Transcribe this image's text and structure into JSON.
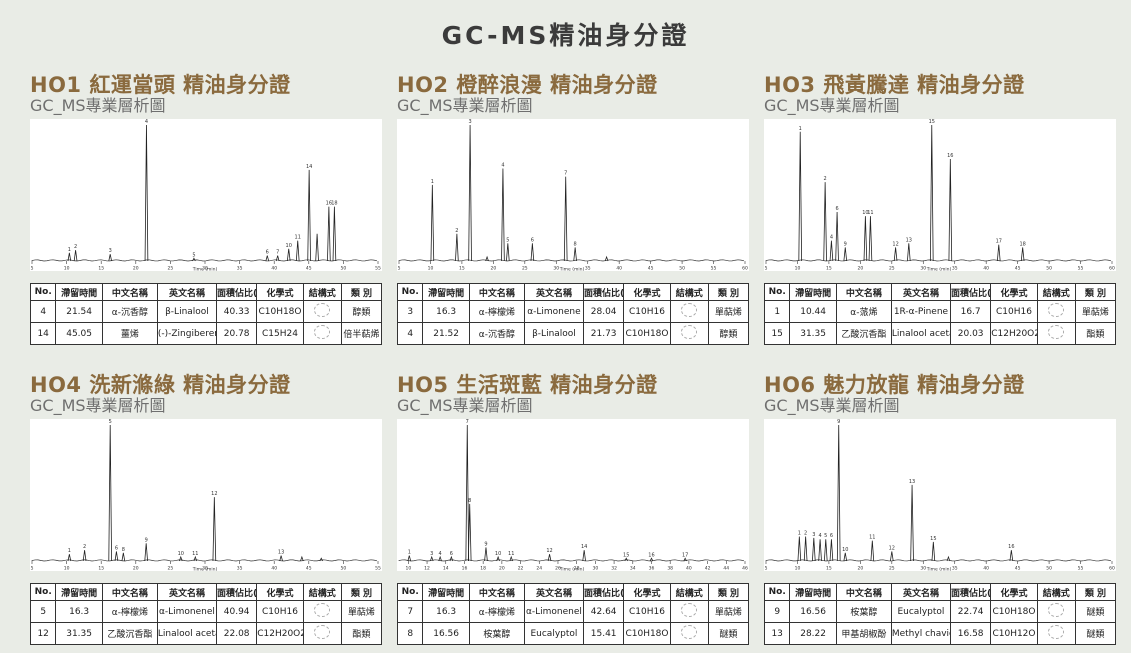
{
  "page_title": "GC-MS精油身分證",
  "subtitle": "GC_MS專業層析圖",
  "table_headers": [
    "No.",
    "滯留時間",
    "中文名稱",
    "英文名稱",
    "面積佔比(%)",
    "化學式",
    "結構式",
    "類 別"
  ],
  "x_axis_label": "Time (min)",
  "panels": [
    {
      "title": "HO1 紅運當頭 精油身分證",
      "rows": [
        {
          "no": "4",
          "rt": "21.54",
          "cn": "α-沉香醇",
          "en": "β-Linalool",
          "area": "40.33",
          "formula": "C10H18O",
          "category": "醇類"
        },
        {
          "no": "14",
          "rt": "45.05",
          "cn": "薑烯",
          "en": "(-)-Zingiberene",
          "area": "20.78",
          "formula": "C15H24",
          "category": "倍半萜烯"
        }
      ]
    },
    {
      "title": "HO2 橙醉浪漫 精油身分證",
      "rows": [
        {
          "no": "3",
          "rt": "16.3",
          "cn": "α-檸檬烯",
          "en": "α-Limonene",
          "area": "28.04",
          "formula": "C10H16",
          "category": "單萜烯"
        },
        {
          "no": "4",
          "rt": "21.52",
          "cn": "α-沉香醇",
          "en": "β-Linalool",
          "area": "21.73",
          "formula": "C10H18O",
          "category": "醇類"
        }
      ]
    },
    {
      "title": "HO3 飛黃騰達 精油身分證",
      "rows": [
        {
          "no": "1",
          "rt": "10.44",
          "cn": "α-蒎烯",
          "en": "1R-α-Pinene",
          "area": "16.7",
          "formula": "C10H16",
          "category": "單萜烯"
        },
        {
          "no": "15",
          "rt": "31.35",
          "cn": "乙酸沉香酯",
          "en": "Linalool acetate",
          "area": "20.03",
          "formula": "C12H20O2",
          "category": "酯類"
        }
      ]
    },
    {
      "title": "HO4 洗新滌綠 精油身分證",
      "rows": [
        {
          "no": "5",
          "rt": "16.3",
          "cn": "α-檸檬烯",
          "en": "α-Limonenel",
          "area": "40.94",
          "formula": "C10H16",
          "category": "單萜烯"
        },
        {
          "no": "12",
          "rt": "31.35",
          "cn": "乙酸沉香酯",
          "en": "Linalool acetate",
          "area": "22.08",
          "formula": "C12H20O2",
          "category": "酯類"
        }
      ]
    },
    {
      "title": "HO5 生活斑藍 精油身分證",
      "rows": [
        {
          "no": "7",
          "rt": "16.3",
          "cn": "α-檸檬烯",
          "en": "α-Limonenel",
          "area": "42.64",
          "formula": "C10H16",
          "category": "單萜烯"
        },
        {
          "no": "8",
          "rt": "16.56",
          "cn": "桉葉醇",
          "en": "Eucalyptol",
          "area": "15.41",
          "formula": "C10H18O",
          "category": "醚類"
        }
      ]
    },
    {
      "title": "HO6 魅力放龍 精油身分證",
      "rows": [
        {
          "no": "9",
          "rt": "16.56",
          "cn": "桉葉醇",
          "en": "Eucalyptol",
          "area": "22.74",
          "formula": "C10H18O",
          "category": "醚類"
        },
        {
          "no": "13",
          "rt": "28.22",
          "cn": "甲基胡椒酚",
          "en": "Methyl chavicol",
          "area": "16.58",
          "formula": "C10H12O",
          "category": "醚類"
        }
      ]
    }
  ],
  "chart_data": [
    {
      "type": "line",
      "xlim": [
        5,
        55
      ],
      "ticks": [
        5,
        10,
        15,
        20,
        25,
        30,
        35,
        40,
        45,
        50,
        55
      ],
      "peaks": [
        {
          "x": 10.4,
          "h": 0.06,
          "label": "1"
        },
        {
          "x": 11.3,
          "h": 0.08,
          "label": "2"
        },
        {
          "x": 16.3,
          "h": 0.05,
          "label": "3"
        },
        {
          "x": 21.54,
          "h": 1.0,
          "label": "4"
        },
        {
          "x": 28.4,
          "h": 0.02,
          "label": "5"
        },
        {
          "x": 39.0,
          "h": 0.04,
          "label": "6"
        },
        {
          "x": 40.5,
          "h": 0.04,
          "label": "7"
        },
        {
          "x": 42.1,
          "h": 0.09,
          "label": "10"
        },
        {
          "x": 43.4,
          "h": 0.15,
          "label": "11"
        },
        {
          "x": 45.05,
          "h": 0.67,
          "label": "14"
        },
        {
          "x": 46.2,
          "h": 0.2,
          "label": ""
        },
        {
          "x": 47.9,
          "h": 0.4,
          "label": "16"
        },
        {
          "x": 48.7,
          "h": 0.4,
          "label": "18"
        }
      ]
    },
    {
      "type": "line",
      "xlim": [
        5,
        60
      ],
      "ticks": [
        5,
        10,
        15,
        20,
        25,
        30,
        35,
        40,
        45,
        50,
        55,
        60
      ],
      "peaks": [
        {
          "x": 10.3,
          "h": 0.56,
          "label": "1"
        },
        {
          "x": 14.2,
          "h": 0.2,
          "label": "2"
        },
        {
          "x": 16.3,
          "h": 1.0,
          "label": "3"
        },
        {
          "x": 21.52,
          "h": 0.68,
          "label": "4"
        },
        {
          "x": 22.3,
          "h": 0.13,
          "label": "5"
        },
        {
          "x": 26.2,
          "h": 0.13,
          "label": "6"
        },
        {
          "x": 31.5,
          "h": 0.62,
          "label": "7"
        },
        {
          "x": 33.0,
          "h": 0.1,
          "label": "8"
        },
        {
          "x": 19.0,
          "h": 0.03,
          "label": ""
        },
        {
          "x": 38.0,
          "h": 0.03,
          "label": ""
        }
      ]
    },
    {
      "type": "line",
      "xlim": [
        5,
        60
      ],
      "ticks": [
        5,
        10,
        15,
        20,
        25,
        30,
        35,
        40,
        45,
        50,
        55,
        60
      ],
      "peaks": [
        {
          "x": 10.44,
          "h": 0.95,
          "label": "1"
        },
        {
          "x": 14.4,
          "h": 0.58,
          "label": "2"
        },
        {
          "x": 15.4,
          "h": 0.15,
          "label": "4"
        },
        {
          "x": 16.3,
          "h": 0.36,
          "label": "6"
        },
        {
          "x": 17.6,
          "h": 0.1,
          "label": "9"
        },
        {
          "x": 20.8,
          "h": 0.33,
          "label": "10"
        },
        {
          "x": 21.6,
          "h": 0.33,
          "label": "11"
        },
        {
          "x": 25.6,
          "h": 0.1,
          "label": "12"
        },
        {
          "x": 27.7,
          "h": 0.13,
          "label": "13"
        },
        {
          "x": 31.35,
          "h": 1.0,
          "label": "15"
        },
        {
          "x": 34.3,
          "h": 0.75,
          "label": "16"
        },
        {
          "x": 42.0,
          "h": 0.12,
          "label": "17"
        },
        {
          "x": 45.8,
          "h": 0.1,
          "label": "18"
        }
      ]
    },
    {
      "type": "line",
      "xlim": [
        5,
        55
      ],
      "ticks": [
        5,
        10,
        15,
        20,
        25,
        30,
        35,
        40,
        45,
        50,
        55
      ],
      "peaks": [
        {
          "x": 10.4,
          "h": 0.05,
          "label": "1"
        },
        {
          "x": 12.6,
          "h": 0.08,
          "label": "2"
        },
        {
          "x": 16.3,
          "h": 1.0,
          "label": "5"
        },
        {
          "x": 17.2,
          "h": 0.07,
          "label": "6"
        },
        {
          "x": 18.2,
          "h": 0.06,
          "label": "8"
        },
        {
          "x": 21.5,
          "h": 0.13,
          "label": "9"
        },
        {
          "x": 26.5,
          "h": 0.03,
          "label": "10"
        },
        {
          "x": 28.6,
          "h": 0.03,
          "label": "11"
        },
        {
          "x": 31.35,
          "h": 0.47,
          "label": "12"
        },
        {
          "x": 41.0,
          "h": 0.04,
          "label": "13"
        },
        {
          "x": 44.0,
          "h": 0.03,
          "label": ""
        },
        {
          "x": 46.8,
          "h": 0.02,
          "label": ""
        }
      ]
    },
    {
      "type": "line",
      "xlim": [
        9,
        46
      ],
      "ticks": [
        10,
        12,
        14,
        16,
        18,
        20,
        22,
        24,
        26,
        28,
        30,
        32,
        34,
        36,
        38,
        40,
        42,
        44,
        46
      ],
      "peaks": [
        {
          "x": 10.1,
          "h": 0.04,
          "label": "1"
        },
        {
          "x": 12.5,
          "h": 0.03,
          "label": "3"
        },
        {
          "x": 13.4,
          "h": 0.03,
          "label": "4"
        },
        {
          "x": 14.6,
          "h": 0.03,
          "label": "6"
        },
        {
          "x": 16.3,
          "h": 1.0,
          "label": "7"
        },
        {
          "x": 16.56,
          "h": 0.42,
          "label": "8"
        },
        {
          "x": 18.3,
          "h": 0.1,
          "label": "9"
        },
        {
          "x": 19.6,
          "h": 0.03,
          "label": "10"
        },
        {
          "x": 21.0,
          "h": 0.03,
          "label": "11"
        },
        {
          "x": 25.1,
          "h": 0.05,
          "label": "12"
        },
        {
          "x": 28.8,
          "h": 0.08,
          "label": "14"
        },
        {
          "x": 33.3,
          "h": 0.02,
          "label": "15"
        },
        {
          "x": 36.0,
          "h": 0.02,
          "label": "16"
        },
        {
          "x": 39.6,
          "h": 0.02,
          "label": "17"
        }
      ]
    },
    {
      "type": "line",
      "xlim": [
        5,
        60
      ],
      "ticks": [
        5,
        10,
        15,
        20,
        25,
        30,
        35,
        40,
        45,
        50,
        55,
        60
      ],
      "peaks": [
        {
          "x": 10.3,
          "h": 0.18,
          "label": "1"
        },
        {
          "x": 11.3,
          "h": 0.18,
          "label": "2"
        },
        {
          "x": 12.6,
          "h": 0.17,
          "label": "3"
        },
        {
          "x": 13.6,
          "h": 0.16,
          "label": "4"
        },
        {
          "x": 14.5,
          "h": 0.16,
          "label": "5"
        },
        {
          "x": 15.4,
          "h": 0.16,
          "label": "6"
        },
        {
          "x": 16.56,
          "h": 1.0,
          "label": "9"
        },
        {
          "x": 17.6,
          "h": 0.06,
          "label": "10"
        },
        {
          "x": 21.9,
          "h": 0.15,
          "label": "11"
        },
        {
          "x": 25.0,
          "h": 0.07,
          "label": "12"
        },
        {
          "x": 28.22,
          "h": 0.56,
          "label": "13"
        },
        {
          "x": 31.6,
          "h": 0.14,
          "label": "15"
        },
        {
          "x": 34.0,
          "h": 0.03,
          "label": ""
        },
        {
          "x": 44.0,
          "h": 0.08,
          "label": "16"
        }
      ]
    }
  ]
}
